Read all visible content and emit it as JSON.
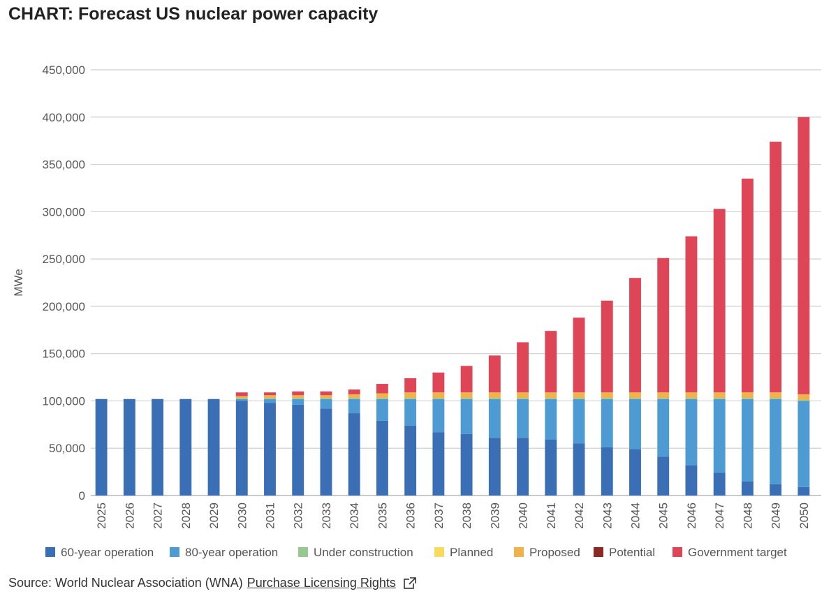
{
  "header": {
    "title": "CHART: Forecast US nuclear power capacity"
  },
  "source": {
    "text": "Source: World Nuclear Association (WNA)",
    "link_label": "Purchase Licensing Rights",
    "link_icon": "external-link-icon"
  },
  "chart_data": {
    "type": "bar",
    "stacked": true,
    "title": "",
    "xlabel": "",
    "ylabel": "MWe",
    "ylim": [
      0,
      450000
    ],
    "yticks": [
      0,
      50000,
      100000,
      150000,
      200000,
      250000,
      300000,
      350000,
      400000,
      450000
    ],
    "ytick_labels": [
      "0",
      "50,000",
      "100,000",
      "150,000",
      "200,000",
      "250,000",
      "300,000",
      "350,000",
      "400,000",
      "450,000"
    ],
    "grid": true,
    "legend_position": "bottom",
    "categories": [
      "2025",
      "2026",
      "2027",
      "2028",
      "2029",
      "2030",
      "2031",
      "2032",
      "2033",
      "2034",
      "2035",
      "2036",
      "2037",
      "2038",
      "2039",
      "2040",
      "2041",
      "2042",
      "2043",
      "2044",
      "2045",
      "2046",
      "2047",
      "2048",
      "2049",
      "2050"
    ],
    "series": [
      {
        "name": "60-year operation",
        "color": "#3a6fb5",
        "values": [
          102000,
          102000,
          102000,
          102000,
          102000,
          100000,
          98000,
          96000,
          92000,
          87000,
          79000,
          74000,
          67000,
          65000,
          61000,
          61000,
          59000,
          55000,
          51000,
          49000,
          41000,
          32000,
          24000,
          15000,
          12000,
          9000
        ]
      },
      {
        "name": "80-year operation",
        "color": "#4e9bd4",
        "values": [
          0,
          0,
          0,
          0,
          0,
          2000,
          4000,
          6000,
          10000,
          15000,
          23000,
          28000,
          35000,
          37000,
          41000,
          41000,
          43000,
          47000,
          51000,
          53000,
          61000,
          70000,
          78000,
          87000,
          90000,
          91000
        ]
      },
      {
        "name": "Under construction",
        "color": "#95c98f",
        "values": [
          0,
          0,
          0,
          0,
          0,
          1000,
          1000,
          1000,
          1000,
          1000,
          1000,
          1000,
          1000,
          1000,
          1000,
          1000,
          1000,
          1000,
          1000,
          1000,
          1000,
          1000,
          1000,
          1000,
          1000,
          1000
        ]
      },
      {
        "name": "Planned",
        "color": "#f7da5e",
        "values": [
          0,
          0,
          0,
          0,
          0,
          0,
          0,
          0,
          0,
          0,
          0,
          0,
          0,
          0,
          0,
          0,
          0,
          0,
          0,
          0,
          0,
          0,
          0,
          0,
          0,
          0
        ]
      },
      {
        "name": "Proposed",
        "color": "#f0b24a",
        "values": [
          0,
          0,
          0,
          0,
          0,
          2000,
          3000,
          3000,
          3000,
          4000,
          5000,
          6000,
          6000,
          6000,
          6000,
          6000,
          6000,
          6000,
          6000,
          6000,
          6000,
          6000,
          6000,
          6000,
          6000,
          6000
        ]
      },
      {
        "name": "Potential",
        "color": "#8b2a22",
        "values": [
          0,
          0,
          0,
          0,
          0,
          0,
          0,
          0,
          0,
          0,
          0,
          0,
          0,
          0,
          0,
          0,
          0,
          0,
          0,
          0,
          0,
          0,
          0,
          0,
          0,
          0
        ]
      },
      {
        "name": "Government target",
        "color": "#de4658",
        "values": [
          0,
          0,
          0,
          0,
          0,
          4000,
          3000,
          4000,
          4000,
          5000,
          10000,
          15000,
          21000,
          28000,
          39000,
          53000,
          65000,
          79000,
          97000,
          121000,
          142000,
          165000,
          194000,
          226000,
          265000,
          293000
        ]
      }
    ]
  }
}
